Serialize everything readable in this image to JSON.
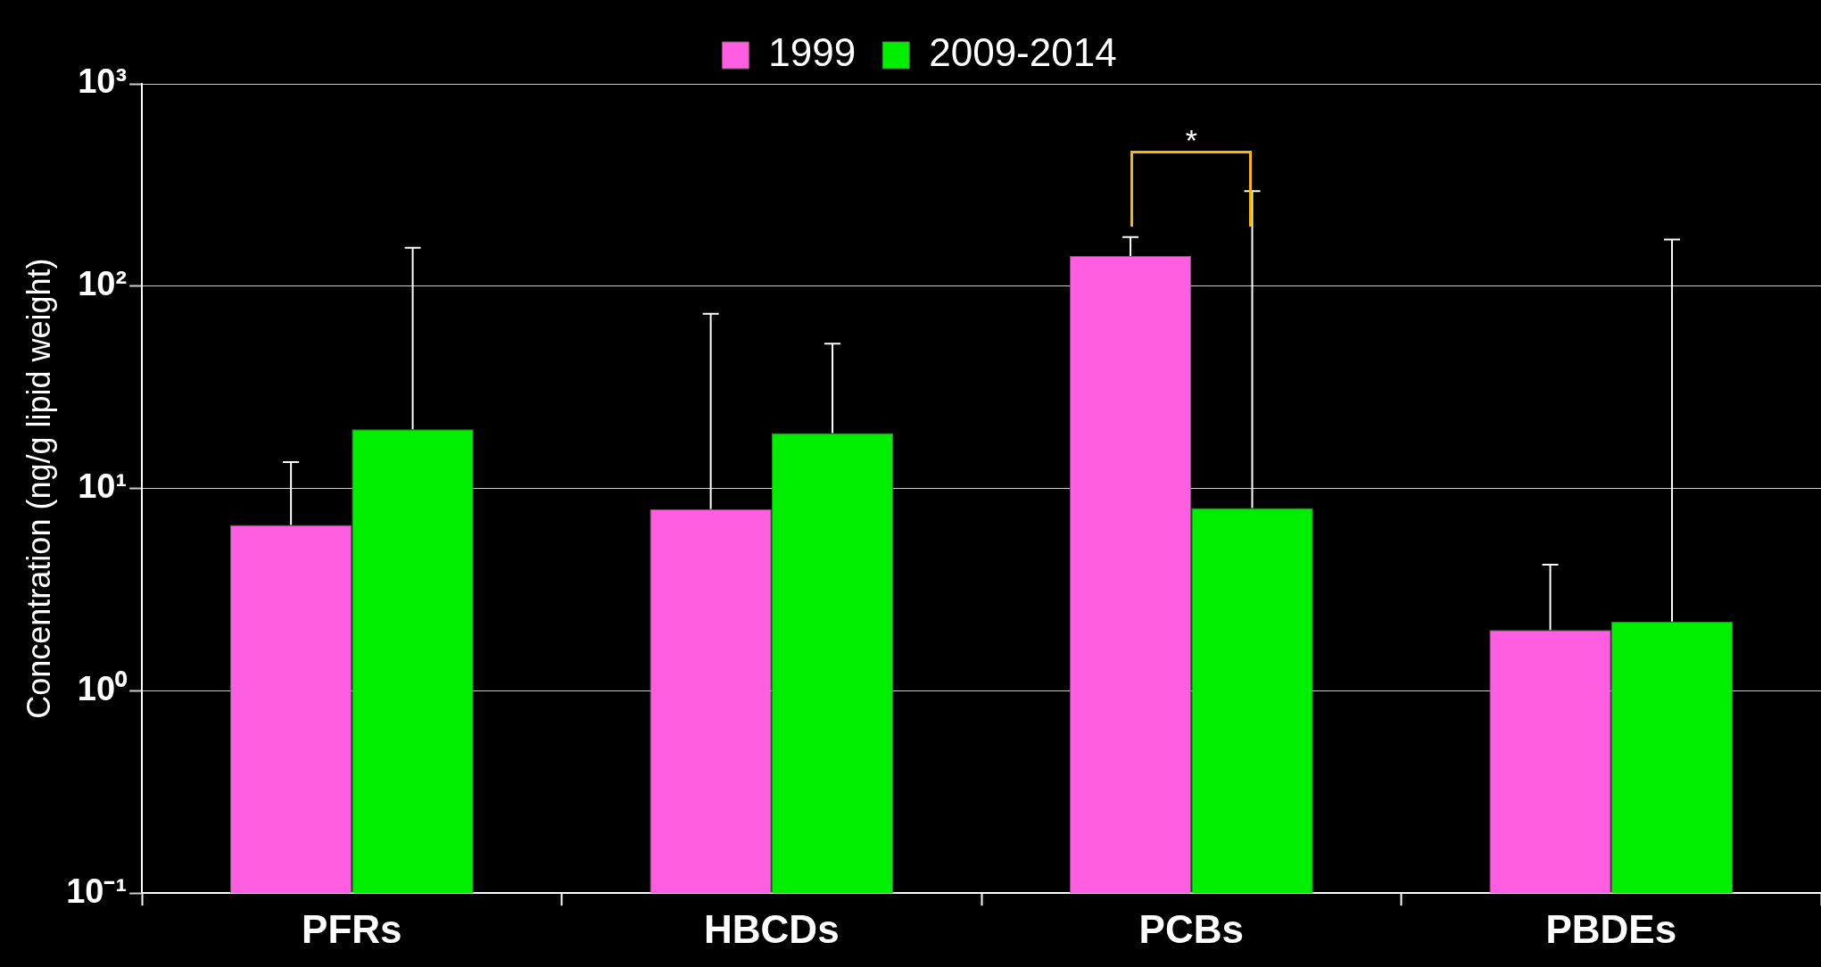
{
  "chart_data": {
    "type": "bar",
    "ylabel": "Concentration (ng/g lipid weight)",
    "categories": [
      "PFRs",
      "HBCDs",
      "PCBs",
      "PBDEs"
    ],
    "series": [
      {
        "name": "1999",
        "color": "#ff5ee0",
        "values": [
          6.6,
          7.9,
          141,
          2.0
        ],
        "errors": [
          [
            6.6,
            13.5
          ],
          [
            7.9,
            73
          ],
          [
            141,
            175
          ],
          [
            2.0,
            4.2
          ]
        ]
      },
      {
        "name": "2009-2014",
        "color": "#00ee00",
        "values": [
          19.6,
          18.8,
          8.0,
          2.2
        ],
        "errors": [
          [
            19.6,
            155
          ],
          [
            18.8,
            52
          ],
          [
            8.0,
            295
          ],
          [
            2.2,
            170
          ]
        ]
      }
    ],
    "log": true,
    "ylim": [
      0.1,
      1000
    ],
    "yticks": [
      {
        "value": 0.1,
        "label": "10⁻¹"
      },
      {
        "value": 1,
        "label": "10⁰"
      },
      {
        "value": 10,
        "label": "10¹"
      },
      {
        "value": 100,
        "label": "10²"
      },
      {
        "value": 1000,
        "label": "10³"
      }
    ],
    "grid": "y",
    "legend": "top",
    "annotations": [
      "*"
    ]
  }
}
